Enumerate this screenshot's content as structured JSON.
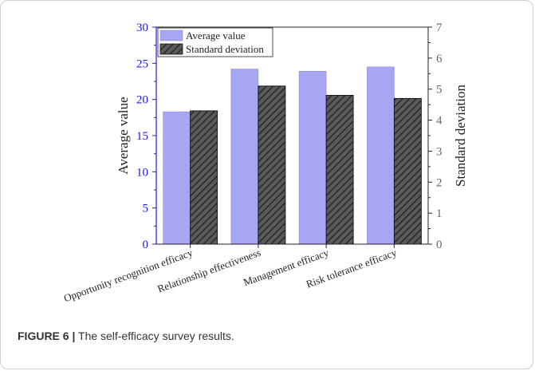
{
  "chart_data": {
    "type": "bar",
    "categories": [
      "Opportunity recognition efficacy",
      "Relationship effectiveness",
      "Management efficacy",
      "Risk tolerance efficacy"
    ],
    "series": [
      {
        "name": "Average value",
        "axis": "left",
        "values": [
          18.3,
          24.2,
          23.9,
          24.5
        ],
        "color": "#a6a6f2"
      },
      {
        "name": "Standard deviation",
        "axis": "right",
        "values": [
          4.3,
          5.1,
          4.8,
          4.7
        ],
        "color": "#5a5a5a",
        "pattern": "hatched"
      }
    ],
    "ylabel": "Average value",
    "ylim": [
      0,
      30
    ],
    "yticks": [
      0,
      5,
      10,
      15,
      20,
      25,
      30
    ],
    "y2label": "Standard deviation",
    "y2lim": [
      0,
      7
    ],
    "y2ticks": [
      0,
      1,
      2,
      3,
      4,
      5,
      6,
      7
    ],
    "grid": false,
    "legend_position": "top-left",
    "colors": {
      "left_axis": "#1a1ae6",
      "right_axis": "#666666",
      "frame": "#222222"
    }
  },
  "caption": {
    "label": "FIGURE 6 |",
    "text": " The self-efficacy survey results."
  }
}
